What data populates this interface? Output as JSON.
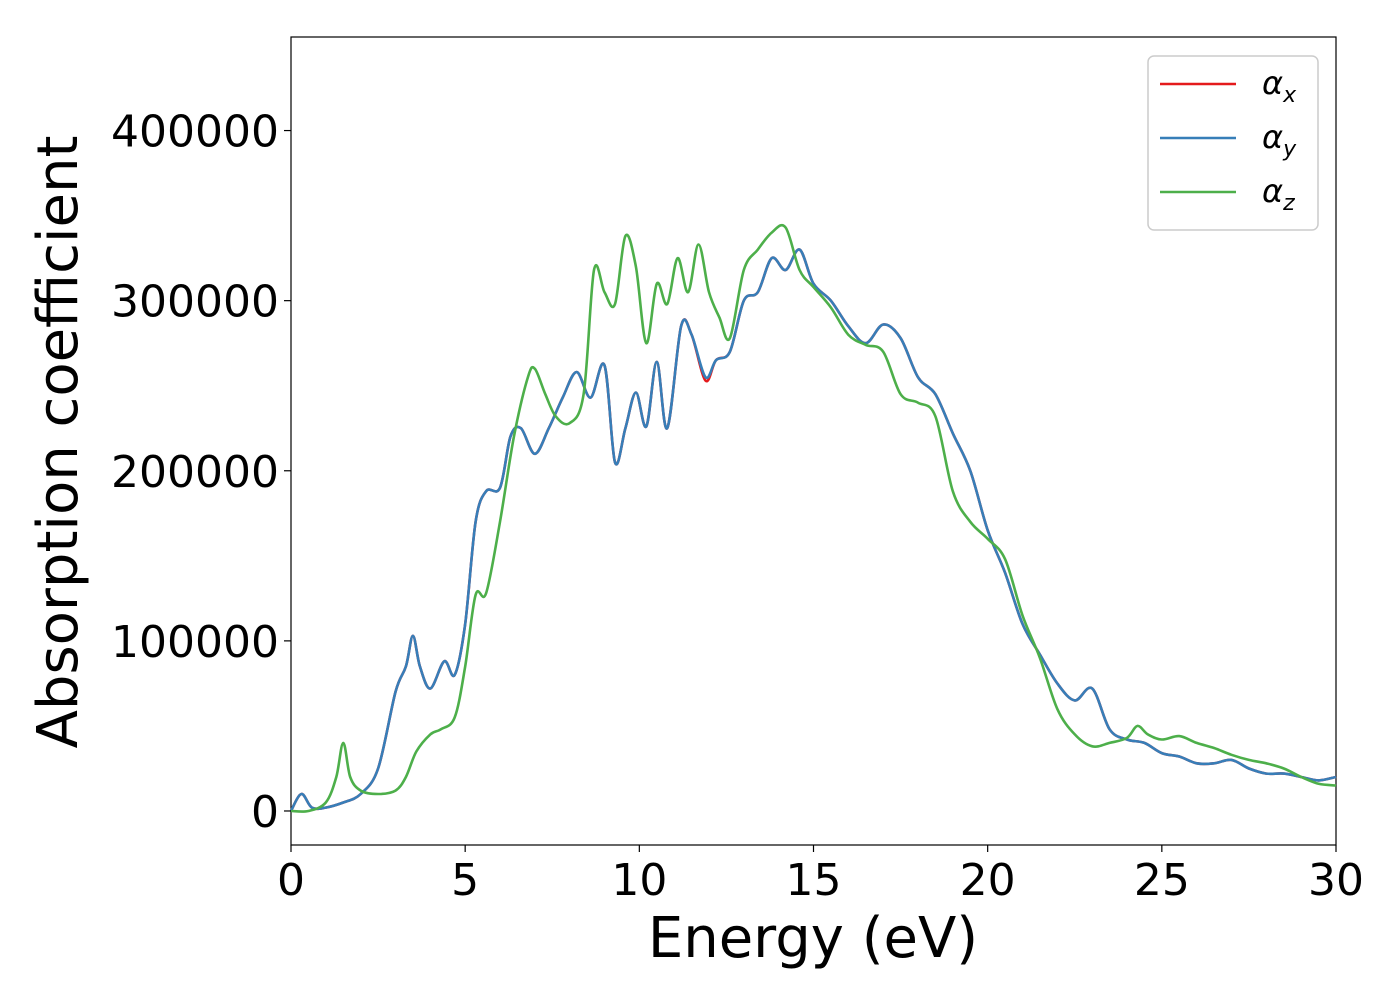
{
  "chart_data": {
    "type": "line",
    "title": "",
    "xlabel": "Energy (eV)",
    "ylabel": "Absorption coefficient",
    "xlim": [
      0,
      30
    ],
    "ylim": [
      -20000,
      455000
    ],
    "xticks": [
      0,
      5,
      10,
      15,
      20,
      25,
      30
    ],
    "yticks": [
      0,
      100000,
      200000,
      300000,
      400000
    ],
    "grid": false,
    "legend": {
      "placement": "top-right"
    },
    "series": [
      {
        "name": "α_x",
        "symbol": "α",
        "subscript": "x",
        "color": "#e41a1c",
        "x": [
          0,
          0.3,
          0.6,
          1.0,
          1.5,
          2.0,
          2.5,
          3.0,
          3.3,
          3.5,
          3.7,
          4.0,
          4.4,
          4.7,
          5.0,
          5.3,
          5.6,
          6.0,
          6.3,
          6.6,
          7.0,
          7.4,
          7.8,
          8.2,
          8.6,
          9.0,
          9.3,
          9.6,
          9.9,
          10.2,
          10.5,
          10.8,
          11.2,
          11.5,
          11.9,
          12.2,
          12.6,
          13.0,
          13.4,
          13.8,
          14.2,
          14.6,
          15.0,
          15.5,
          16.0,
          16.5,
          17.0,
          17.5,
          18.0,
          18.5,
          19.0,
          19.5,
          20.0,
          20.5,
          21.0,
          21.5,
          22.0,
          22.5,
          23.0,
          23.5,
          24.0,
          24.5,
          25.0,
          25.5,
          26.0,
          26.5,
          27.0,
          27.5,
          28.0,
          28.5,
          29.0,
          29.5,
          30.0
        ],
        "values": [
          0,
          10000,
          2000,
          2000,
          5000,
          10000,
          25000,
          70000,
          85000,
          103000,
          85000,
          72000,
          88000,
          80000,
          110000,
          170000,
          188000,
          190000,
          220000,
          225000,
          210000,
          225000,
          243000,
          258000,
          243000,
          262000,
          205000,
          225000,
          246000,
          226000,
          264000,
          225000,
          285000,
          280000,
          253000,
          265000,
          270000,
          300000,
          305000,
          325000,
          318000,
          330000,
          310000,
          300000,
          285000,
          275000,
          286000,
          278000,
          255000,
          245000,
          222000,
          200000,
          165000,
          140000,
          110000,
          92000,
          75000,
          65000,
          72000,
          48000,
          42000,
          40000,
          34000,
          32000,
          28000,
          28000,
          30000,
          25000,
          22000,
          22000,
          20000,
          18000,
          20000
        ]
      },
      {
        "name": "α_y",
        "symbol": "α",
        "subscript": "y",
        "color": "#377eb8",
        "x": [
          0,
          0.3,
          0.6,
          1.0,
          1.5,
          2.0,
          2.5,
          3.0,
          3.3,
          3.5,
          3.7,
          4.0,
          4.4,
          4.7,
          5.0,
          5.3,
          5.6,
          6.0,
          6.3,
          6.6,
          7.0,
          7.4,
          7.8,
          8.2,
          8.6,
          9.0,
          9.3,
          9.6,
          9.9,
          10.2,
          10.5,
          10.8,
          11.2,
          11.5,
          11.9,
          12.2,
          12.6,
          13.0,
          13.4,
          13.8,
          14.2,
          14.6,
          15.0,
          15.5,
          16.0,
          16.5,
          17.0,
          17.5,
          18.0,
          18.5,
          19.0,
          19.5,
          20.0,
          20.5,
          21.0,
          21.5,
          22.0,
          22.5,
          23.0,
          23.5,
          24.0,
          24.5,
          25.0,
          25.5,
          26.0,
          26.5,
          27.0,
          27.5,
          28.0,
          28.5,
          29.0,
          29.5,
          30.0
        ],
        "values": [
          0,
          10000,
          2000,
          2000,
          5000,
          10000,
          25000,
          70000,
          85000,
          103000,
          85000,
          72000,
          88000,
          80000,
          110000,
          170000,
          188000,
          190000,
          220000,
          225000,
          210000,
          225000,
          243000,
          258000,
          243000,
          262000,
          205000,
          225000,
          246000,
          226000,
          264000,
          225000,
          285000,
          280000,
          255000,
          265000,
          270000,
          300000,
          305000,
          325000,
          318000,
          330000,
          310000,
          300000,
          285000,
          275000,
          286000,
          278000,
          255000,
          245000,
          222000,
          200000,
          165000,
          140000,
          110000,
          92000,
          75000,
          65000,
          72000,
          48000,
          42000,
          40000,
          34000,
          32000,
          28000,
          28000,
          30000,
          25000,
          22000,
          22000,
          20000,
          18000,
          20000
        ]
      },
      {
        "name": "α_z",
        "symbol": "α",
        "subscript": "z",
        "color": "#4daf4a",
        "x": [
          0,
          0.5,
          1.0,
          1.3,
          1.5,
          1.7,
          2.0,
          2.5,
          3.0,
          3.3,
          3.6,
          4.0,
          4.3,
          4.7,
          5.0,
          5.3,
          5.6,
          6.0,
          6.4,
          6.8,
          7.0,
          7.3,
          7.6,
          8.0,
          8.4,
          8.7,
          9.0,
          9.3,
          9.6,
          9.9,
          10.2,
          10.5,
          10.8,
          11.1,
          11.4,
          11.7,
          12.0,
          12.3,
          12.6,
          13.0,
          13.4,
          13.8,
          14.2,
          14.6,
          15.0,
          15.5,
          16.0,
          16.5,
          17.0,
          17.5,
          18.0,
          18.5,
          19.0,
          19.5,
          20.0,
          20.5,
          21.0,
          21.5,
          22.0,
          22.5,
          23.0,
          23.5,
          24.0,
          24.3,
          24.6,
          25.0,
          25.5,
          26.0,
          26.5,
          27.0,
          27.5,
          28.0,
          28.5,
          29.0,
          29.5,
          30.0
        ],
        "values": [
          0,
          0,
          5000,
          20000,
          40000,
          20000,
          12000,
          10000,
          12000,
          20000,
          35000,
          45000,
          48000,
          55000,
          85000,
          127000,
          128000,
          170000,
          220000,
          255000,
          260000,
          245000,
          232000,
          228000,
          245000,
          318000,
          305000,
          298000,
          338000,
          320000,
          275000,
          310000,
          298000,
          325000,
          305000,
          333000,
          305000,
          290000,
          278000,
          318000,
          330000,
          340000,
          343000,
          318000,
          308000,
          296000,
          280000,
          274000,
          270000,
          245000,
          240000,
          232000,
          188000,
          170000,
          160000,
          148000,
          115000,
          90000,
          60000,
          45000,
          38000,
          40000,
          43000,
          50000,
          45000,
          42000,
          44000,
          40000,
          37000,
          33000,
          30000,
          28000,
          25000,
          20000,
          16000,
          15000
        ]
      }
    ]
  }
}
